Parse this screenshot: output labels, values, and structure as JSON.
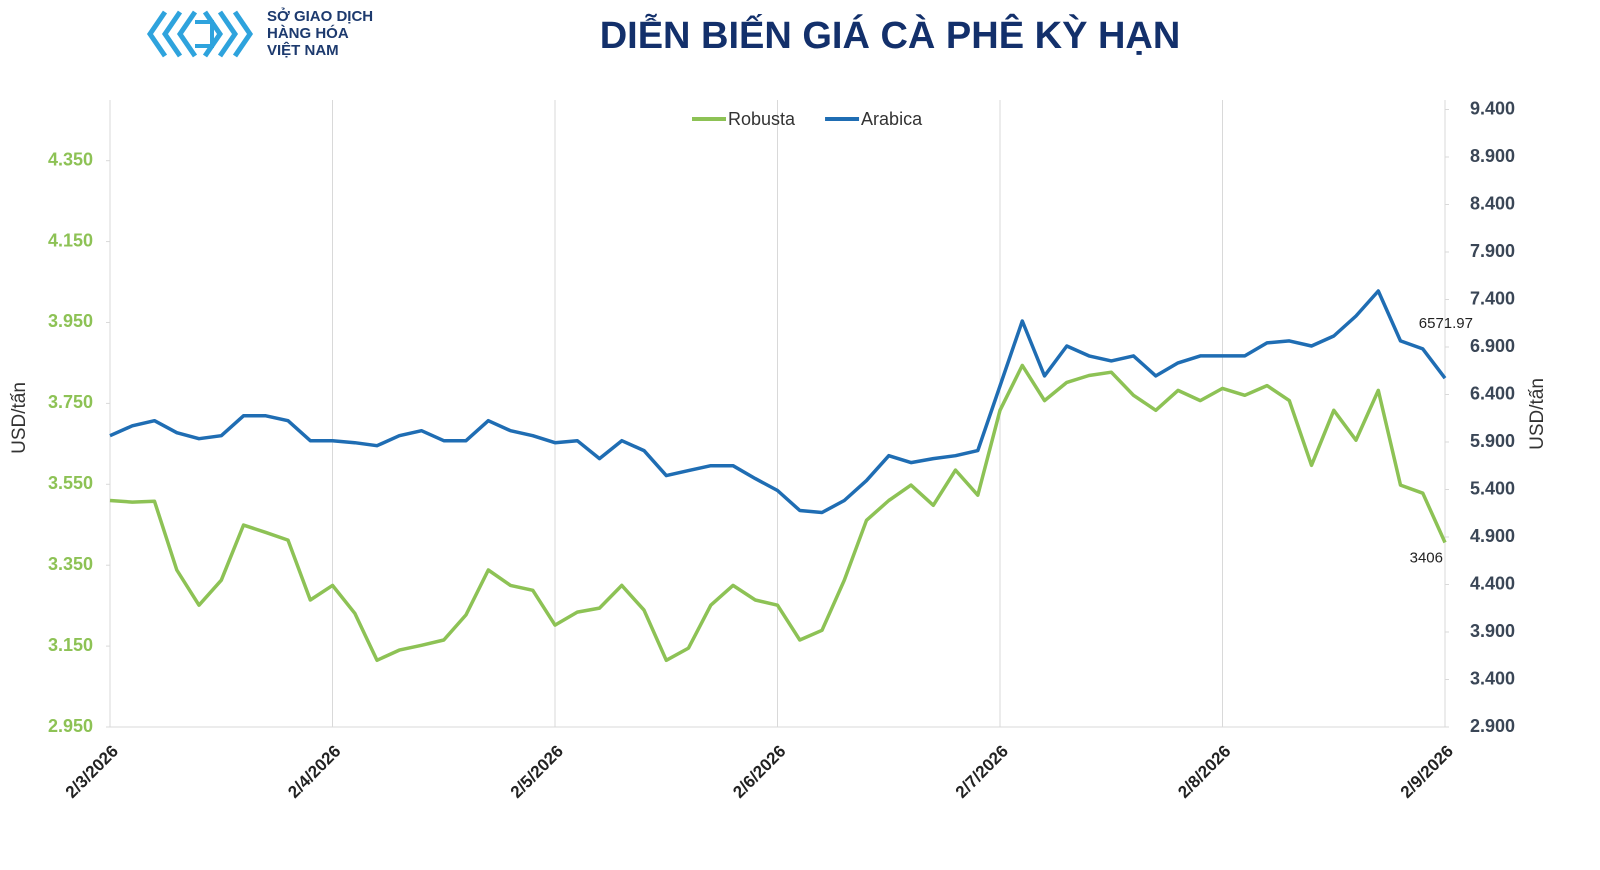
{
  "logo": {
    "lines": [
      "SỞ GIAO DỊCH",
      "HÀNG HÓA",
      "VIỆT NAM"
    ]
  },
  "chart_data": {
    "type": "line",
    "title": "DIỄN BIẾN GIÁ CÀ PHÊ KỲ HẠN",
    "y_label": "USD/tấn",
    "y2_label": "USD/tấn",
    "legend": "top",
    "categories": [
      "2/3/2026",
      null,
      null,
      null,
      null,
      null,
      null,
      null,
      null,
      null,
      "2/4/2026",
      null,
      null,
      null,
      null,
      null,
      null,
      null,
      null,
      null,
      "2/5/2026",
      null,
      null,
      null,
      null,
      null,
      null,
      null,
      null,
      null,
      "2/6/2026",
      null,
      null,
      null,
      null,
      null,
      null,
      null,
      null,
      null,
      "2/7/2026",
      null,
      null,
      null,
      null,
      null,
      null,
      null,
      null,
      null,
      "2/8/2026",
      null,
      null,
      null,
      null,
      null,
      null,
      null,
      null,
      null,
      "2/9/2026"
    ],
    "series": [
      {
        "name": "Robusta",
        "color": "#8dc255",
        "axis": "y",
        "values": [
          3510,
          3506,
          3508,
          3338,
          3251,
          3313,
          3449,
          3431,
          3412,
          3264,
          3300,
          3231,
          3115,
          3140,
          3152,
          3165,
          3227,
          3338,
          3300,
          3288,
          3202,
          3234,
          3244,
          3300,
          3239,
          3115,
          3145,
          3251,
          3300,
          3264,
          3251,
          3165,
          3189,
          3313,
          3461,
          3510,
          3548,
          3498,
          3585,
          3523,
          3733,
          3844,
          3757,
          3802,
          3819,
          3827,
          3770,
          3733,
          3782,
          3757,
          3787,
          3770,
          3794,
          3757,
          3597,
          3733,
          3659,
          3782,
          3548,
          3528,
          3406
        ]
      },
      {
        "name": "Arabica",
        "color": "#1f6db3",
        "axis": "y2",
        "values": [
          5966,
          6071,
          6124,
          5998,
          5935,
          5966,
          6176,
          6176,
          6124,
          5914,
          5914,
          5893,
          5861,
          5966,
          6019,
          5914,
          5914,
          6124,
          6019,
          5966,
          5893,
          5914,
          5725,
          5914,
          5809,
          5546,
          5599,
          5651,
          5651,
          5515,
          5389,
          5179,
          5158,
          5284,
          5494,
          5756,
          5683,
          5725,
          5756,
          5809,
          6491,
          7174,
          6596,
          6911,
          6806,
          6754,
          6806,
          6596,
          6733,
          6806,
          6806,
          6806,
          6943,
          6964,
          6911,
          7016,
          7226,
          7489,
          6964,
          6880,
          6571.97
        ]
      }
    ],
    "ylim": [
      2950,
      4500
    ],
    "yticks": [
      {
        "value": 2950,
        "label": "2.950"
      },
      {
        "value": 3150,
        "label": "3.150"
      },
      {
        "value": 3350,
        "label": "3.350"
      },
      {
        "value": 3550,
        "label": "3.550"
      },
      {
        "value": 3750,
        "label": "3.750"
      },
      {
        "value": 3950,
        "label": "3.950"
      },
      {
        "value": 4150,
        "label": "4.150"
      },
      {
        "value": 4350,
        "label": "4.350"
      }
    ],
    "y2lim": [
      2900,
      9500
    ],
    "y2ticks": [
      {
        "value": 2900,
        "label": "2.900"
      },
      {
        "value": 3400,
        "label": "3.400"
      },
      {
        "value": 3900,
        "label": "3.900"
      },
      {
        "value": 4400,
        "label": "4.400"
      },
      {
        "value": 4900,
        "label": "4.900"
      },
      {
        "value": 5400,
        "label": "5.400"
      },
      {
        "value": 5900,
        "label": "5.900"
      },
      {
        "value": 6400,
        "label": "6.400"
      },
      {
        "value": 6900,
        "label": "6.900"
      },
      {
        "value": 7400,
        "label": "7.400"
      },
      {
        "value": 7900,
        "label": "7.900"
      },
      {
        "value": 8400,
        "label": "8.400"
      },
      {
        "value": 8900,
        "label": "8.900"
      },
      {
        "value": 9400,
        "label": "9.400"
      }
    ],
    "grid": "x"
  }
}
